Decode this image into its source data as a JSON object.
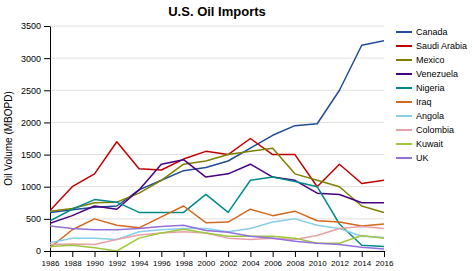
{
  "chart_data": {
    "type": "line",
    "title": "U.S. Oil Imports",
    "y_label": "Oil Volume (MBOPD)",
    "x": [
      1986,
      1988,
      1990,
      1992,
      1994,
      1996,
      1998,
      2000,
      2002,
      2004,
      2006,
      2008,
      2010,
      2012,
      2014,
      2016
    ],
    "series": [
      {
        "name": "Canada",
        "color": "#1f4e96",
        "values": [
          600,
          640,
          680,
          700,
          950,
          1100,
          1250,
          1300,
          1400,
          1600,
          1800,
          1950,
          1980,
          2500,
          3200,
          3270
        ]
      },
      {
        "name": "Saudi Arabia",
        "color": "#c00000",
        "values": [
          630,
          1000,
          1200,
          1700,
          1280,
          1260,
          1430,
          1550,
          1500,
          1750,
          1500,
          1500,
          1000,
          1350,
          1050,
          1100
        ]
      },
      {
        "name": "Mexico",
        "color": "#7f7f00",
        "values": [
          620,
          660,
          750,
          760,
          900,
          1100,
          1350,
          1400,
          1500,
          1550,
          1600,
          1200,
          1100,
          1000,
          700,
          600
        ]
      },
      {
        "name": "Venezuela",
        "color": "#4b0082",
        "values": [
          430,
          550,
          700,
          650,
          950,
          1350,
          1420,
          1150,
          1200,
          1350,
          1150,
          1100,
          900,
          880,
          750,
          750
        ]
      },
      {
        "name": "Nigeria",
        "color": "#008b8b",
        "values": [
          470,
          650,
          800,
          760,
          600,
          600,
          600,
          880,
          600,
          1100,
          1150,
          1080,
          1000,
          420,
          90,
          70
        ]
      },
      {
        "name": "Iraq",
        "color": "#d2691e",
        "values": [
          50,
          330,
          500,
          400,
          360,
          530,
          700,
          440,
          450,
          650,
          550,
          620,
          470,
          450,
          390,
          420
        ]
      },
      {
        "name": "Angola",
        "color": "#87ceeb",
        "values": [
          130,
          200,
          200,
          180,
          300,
          330,
          350,
          350,
          300,
          350,
          450,
          500,
          400,
          350,
          230,
          210
        ]
      },
      {
        "name": "Colombia",
        "color": "#e8a0a8",
        "values": [
          100,
          110,
          100,
          180,
          250,
          280,
          300,
          280,
          200,
          180,
          200,
          180,
          240,
          350,
          380,
          350
        ]
      },
      {
        "name": "Kuwait",
        "color": "#9dc83c",
        "values": [
          70,
          90,
          50,
          0,
          200,
          280,
          340,
          280,
          230,
          230,
          230,
          200,
          120,
          120,
          240,
          200
        ]
      },
      {
        "name": "UK",
        "color": "#9370db",
        "values": [
          390,
          350,
          330,
          330,
          350,
          380,
          400,
          320,
          290,
          230,
          200,
          150,
          120,
          100,
          60,
          30
        ]
      }
    ],
    "xlim": [
      1986,
      2016
    ],
    "xticks": [
      1986,
      1988,
      1990,
      1992,
      1994,
      1996,
      1998,
      2000,
      2002,
      2004,
      2006,
      2008,
      2010,
      2012,
      2014,
      2016
    ],
    "ylim": [
      0,
      3500
    ],
    "yticks": [
      0,
      500,
      1000,
      1500,
      2000,
      2500,
      3000,
      3500
    ],
    "grid": true,
    "legend": "right"
  }
}
